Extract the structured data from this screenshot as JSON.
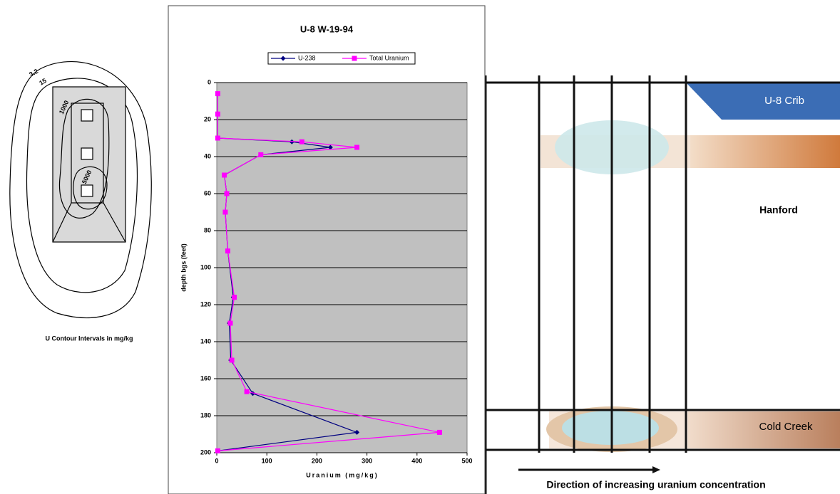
{
  "chart_data": {
    "type": "line",
    "title": "U-8  W-19-94",
    "xlabel": "Uranium (mg/kg)",
    "ylabel": "depth bgs (feet)",
    "xlim": [
      0,
      500
    ],
    "xticks": [
      0,
      100,
      200,
      300,
      400,
      500
    ],
    "ylim": [
      0,
      200
    ],
    "yticks": [
      0,
      20,
      40,
      60,
      80,
      100,
      120,
      140,
      160,
      180,
      200
    ],
    "y_inverted": true,
    "grid": true,
    "background": "#c0c0c0",
    "series": [
      {
        "name": "U-238",
        "color": "#000080",
        "marker": "diamond",
        "x": [
          2,
          2,
          2,
          150,
          227,
          88,
          15,
          20,
          17,
          22,
          33,
          25,
          28,
          72,
          280,
          2
        ],
        "y": [
          6,
          17,
          30,
          32,
          35,
          39,
          50,
          60,
          70,
          91,
          116,
          130,
          150,
          168,
          189,
          199
        ]
      },
      {
        "name": "Total Uranium",
        "color": "#ff00ff",
        "marker": "square",
        "x": [
          2,
          2,
          2,
          170,
          280,
          88,
          15,
          20,
          17,
          22,
          35,
          27,
          30,
          60,
          445,
          2
        ],
        "y": [
          6,
          17,
          30,
          32,
          35,
          39,
          50,
          60,
          70,
          91,
          116,
          130,
          150,
          167,
          189,
          199
        ]
      }
    ]
  },
  "contour_map": {
    "labels": [
      "3.2",
      "15",
      "1000",
      "5000"
    ],
    "caption": "U Contour Intervals in mg/kg"
  },
  "schematic": {
    "crib": "U-8 Crib",
    "upper_unit": "Hanford",
    "lower_unit": "Cold Creek",
    "arrow_label": "Direction of increasing uranium concentration"
  }
}
